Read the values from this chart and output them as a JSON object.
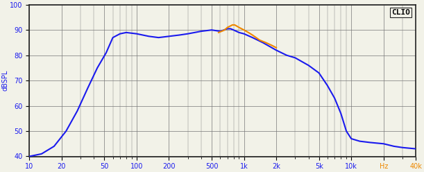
{
  "title": "CLIO",
  "ylabel": "dBSPL",
  "xmin": 10,
  "xmax": 40000,
  "ymin": 40,
  "ymax": 100,
  "yticks": [
    40,
    50,
    60,
    70,
    80,
    90,
    100
  ],
  "xtick_labels": [
    "10",
    "20",
    "50",
    "100",
    "200",
    "500",
    "1k",
    "2k",
    "5k",
    "10k",
    "Hz",
    "40k"
  ],
  "xtick_values": [
    10,
    20,
    50,
    100,
    200,
    500,
    1000,
    2000,
    5000,
    10000,
    20000,
    40000
  ],
  "blue_color": "#1a1aee",
  "orange_color": "#ee8800",
  "background_color": "#f2f2e8",
  "grid_color": "#777777",
  "line_width": 1.5,
  "blue_x": [
    10,
    13,
    17,
    22,
    28,
    35,
    43,
    52,
    60,
    70,
    80,
    100,
    130,
    160,
    200,
    250,
    300,
    400,
    500,
    600,
    650,
    700,
    750,
    800,
    900,
    1000,
    1200,
    1500,
    2000,
    2500,
    3000,
    4000,
    5000,
    6000,
    7000,
    8000,
    9000,
    10000,
    12000,
    15000,
    20000,
    25000,
    30000,
    40000
  ],
  "blue_y": [
    40,
    41,
    44,
    50,
    58,
    67,
    75,
    81,
    87,
    88.5,
    89,
    88.5,
    87.5,
    87,
    87.5,
    88,
    88.5,
    89.5,
    90,
    89.5,
    90,
    90.5,
    90.5,
    90,
    89,
    88.5,
    87,
    85,
    82,
    80,
    79,
    76,
    73,
    68,
    63,
    57,
    50,
    47,
    46,
    45.5,
    45,
    44,
    43.5,
    43
  ],
  "orange_x": [
    580,
    620,
    660,
    700,
    740,
    780,
    820,
    860,
    900,
    950,
    1000,
    1100,
    1200,
    1400,
    1600,
    1800,
    2000
  ],
  "orange_y": [
    89,
    89.5,
    90,
    91,
    91.5,
    92,
    92,
    91.5,
    91,
    90.5,
    90,
    89,
    88,
    86,
    85,
    84,
    83
  ]
}
